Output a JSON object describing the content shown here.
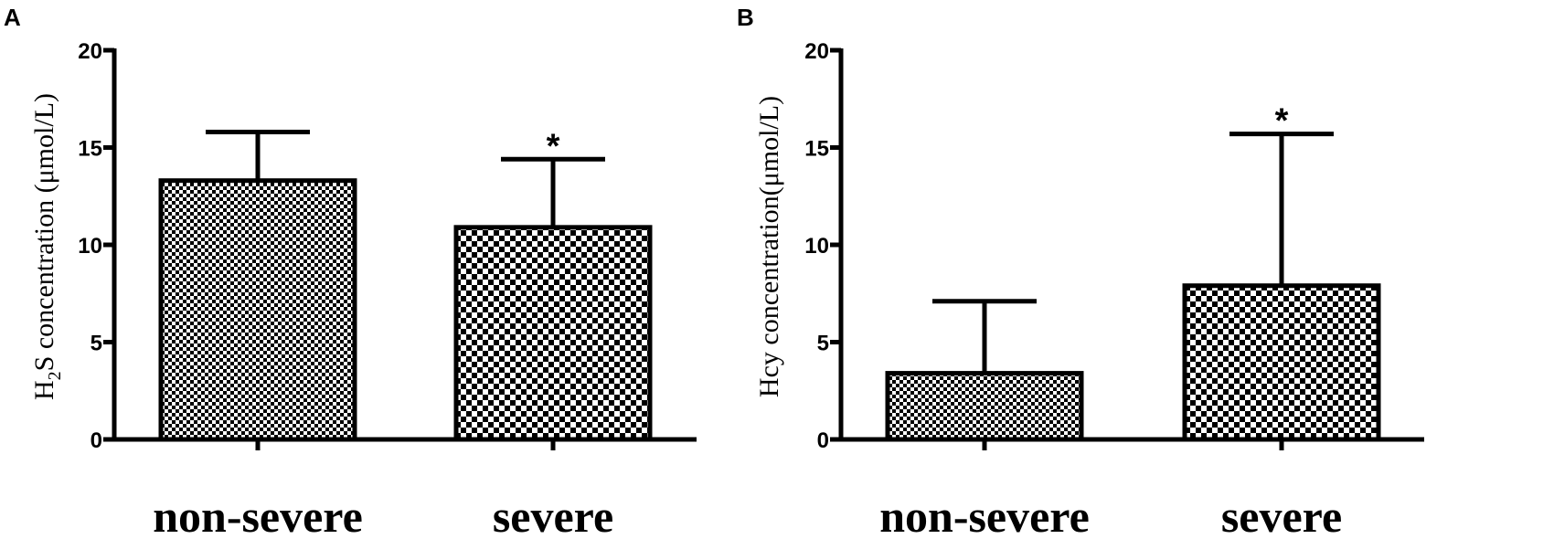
{
  "chart_data": [
    {
      "type": "bar",
      "panel": "A",
      "ylabel_main": "H",
      "ylabel_sub": "2",
      "ylabel_rest": "S concentration (μmol/L)",
      "categories": [
        "non-severe",
        "severe"
      ],
      "values": [
        13.3,
        10.9
      ],
      "error_upper": [
        15.8,
        14.4
      ],
      "significance": [
        "",
        "*"
      ],
      "ylim": [
        0,
        20
      ],
      "yticks": [
        0,
        5,
        10,
        15,
        20
      ],
      "patterns": [
        "fine-check",
        "coarse-check"
      ]
    },
    {
      "type": "bar",
      "panel": "B",
      "ylabel_main": "Hcy concentrat",
      "ylabel_sub": "",
      "ylabel_rest": "ion(μmol/L)",
      "categories": [
        "non-severe",
        "severe"
      ],
      "values": [
        3.4,
        7.9
      ],
      "error_upper": [
        7.1,
        15.7
      ],
      "significance": [
        "",
        "*"
      ],
      "ylim": [
        0,
        20
      ],
      "yticks": [
        0,
        5,
        10,
        15,
        20
      ],
      "patterns": [
        "fine-check",
        "coarse-check"
      ]
    }
  ]
}
